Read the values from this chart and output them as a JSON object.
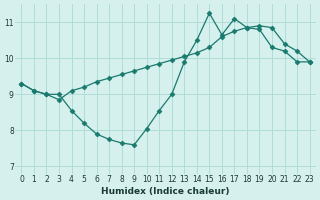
{
  "xlabel": "Humidex (Indice chaleur)",
  "background_color": "#d6f0ee",
  "line_color": "#1a7a6e",
  "xlim": [
    -0.5,
    23.5
  ],
  "ylim": [
    6.8,
    11.5
  ],
  "xticks": [
    0,
    1,
    2,
    3,
    4,
    5,
    6,
    7,
    8,
    9,
    10,
    11,
    12,
    13,
    14,
    15,
    16,
    17,
    18,
    19,
    20,
    21,
    22,
    23
  ],
  "yticks": [
    7,
    8,
    9,
    10,
    11
  ],
  "series1_x": [
    0,
    1,
    2,
    3,
    4,
    5,
    6,
    7,
    8,
    9,
    10,
    11,
    12,
    13,
    14,
    15,
    16,
    17,
    18,
    19,
    20,
    21,
    22,
    23
  ],
  "series1_y": [
    9.3,
    9.1,
    9.0,
    9.0,
    8.55,
    8.2,
    7.9,
    7.75,
    7.65,
    7.6,
    8.05,
    8.55,
    9.0,
    9.9,
    10.5,
    11.25,
    10.65,
    11.1,
    10.85,
    10.8,
    10.3,
    10.2,
    9.9,
    9.9
  ],
  "series2_x": [
    0,
    1,
    2,
    3,
    4,
    5,
    6,
    7,
    8,
    9,
    10,
    11,
    12,
    13,
    14,
    15,
    16,
    17,
    18,
    19,
    20,
    21,
    22,
    23
  ],
  "series2_y": [
    9.3,
    9.1,
    9.0,
    8.85,
    9.1,
    9.2,
    9.35,
    9.45,
    9.55,
    9.65,
    9.75,
    9.85,
    9.95,
    10.05,
    10.15,
    10.3,
    10.6,
    10.75,
    10.85,
    10.9,
    10.85,
    10.4,
    10.2,
    9.9
  ],
  "grid_color": "#b0ddd8",
  "marker": "D",
  "markersize": 2.5
}
